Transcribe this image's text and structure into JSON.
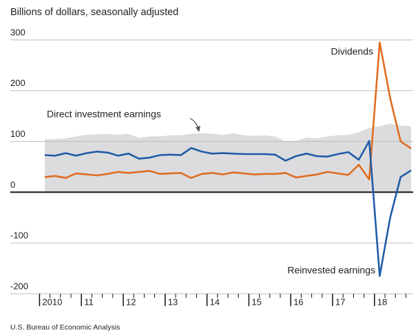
{
  "chart_data": {
    "type": "line",
    "title": "Billions of dollars, seasonally adjusted",
    "source": "U.S. Bureau of Economic Analysis",
    "categories": [
      "2010",
      null,
      null,
      null,
      "11",
      null,
      null,
      null,
      "12",
      null,
      null,
      null,
      "13",
      null,
      null,
      null,
      "14",
      null,
      null,
      null,
      "15",
      null,
      null,
      null,
      "16",
      null,
      null,
      null,
      "17",
      null,
      null,
      null,
      "18",
      null,
      null,
      null
    ],
    "ylim": [
      -200,
      300
    ],
    "yticks": [
      -200,
      -100,
      0,
      100,
      200,
      300
    ],
    "grid": true,
    "series": [
      {
        "name": "Direct investment earnings",
        "type": "area",
        "color": "#dcdcde",
        "values": [
          104,
          105,
          106,
          110,
          113,
          114,
          115,
          113,
          115,
          107,
          110,
          110,
          112,
          112,
          115,
          116,
          115,
          113,
          116,
          112,
          111,
          112,
          110,
          100,
          101,
          108,
          106,
          110,
          112,
          113,
          118,
          126,
          130,
          135,
          131,
          130
        ]
      },
      {
        "name": "Dividends",
        "type": "line",
        "color": "#e06c1f",
        "values": [
          30,
          32,
          28,
          37,
          35,
          33,
          36,
          40,
          38,
          40,
          42,
          36,
          37,
          38,
          28,
          36,
          38,
          35,
          39,
          37,
          35,
          36,
          36,
          38,
          29,
          32,
          35,
          40,
          37,
          34,
          54,
          25,
          295,
          185,
          100,
          86
        ]
      },
      {
        "name": "Reinvested earnings",
        "type": "line",
        "color": "#1f5aa6",
        "values": [
          73,
          72,
          77,
          72,
          77,
          80,
          78,
          72,
          76,
          66,
          68,
          73,
          74,
          73,
          87,
          80,
          76,
          77,
          76,
          75,
          75,
          75,
          74,
          62,
          71,
          76,
          71,
          70,
          75,
          79,
          64,
          101,
          -165,
          -50,
          30,
          43
        ]
      }
    ]
  }
}
